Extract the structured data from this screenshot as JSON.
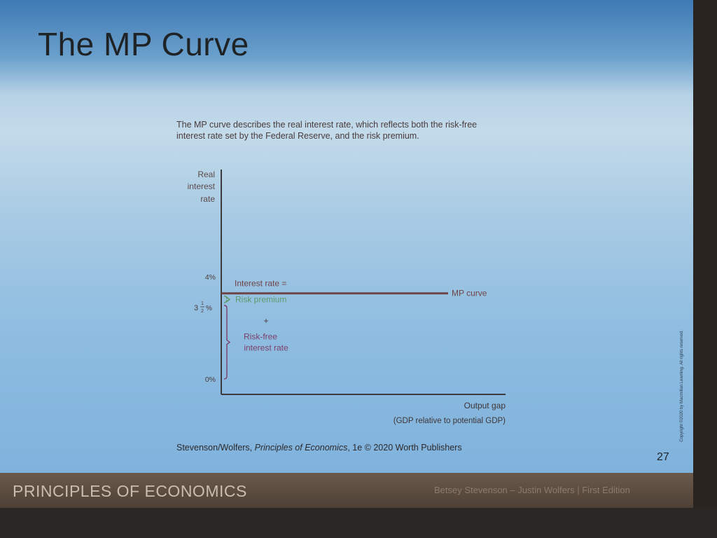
{
  "slide": {
    "title": "The MP Curve",
    "caption": "The MP curve describes the real interest rate, which reflects both the risk-free interest rate set by the Federal Reserve, and the risk premium.",
    "credit_prefix": "Stevenson/Wolfers, ",
    "credit_book": "Principles of Economics",
    "credit_suffix": ", 1e © 2020 Worth Publishers",
    "page_number": "27",
    "copyright": "Copyright ©2020 by Macmillan Learning. All rights reserved."
  },
  "footer": {
    "left": "PRINCIPLES OF ECONOMICS",
    "right": "Betsey Stevenson – Justin Wolfers | First Edition"
  },
  "colors": {
    "curve": "#6e4448",
    "risk_premium": "#5a9a6a",
    "risk_free": "#7c3f6a",
    "axis": "#3b3a3c"
  },
  "chart_data": {
    "type": "line",
    "title": "",
    "ylabel": [
      "Real",
      "interest",
      "rate"
    ],
    "xlabel": [
      "Output gap",
      "(GDP relative to potential GDP)"
    ],
    "ylim": [
      0,
      10.5
    ],
    "yticks": [
      {
        "value": 4,
        "label": "4%"
      },
      {
        "value": 3.5,
        "label": "3½%",
        "whole": "3",
        "num": "1",
        "den": "2",
        "suffix": "%"
      },
      {
        "value": 0,
        "label": "0%"
      }
    ],
    "series": [
      {
        "name": "MP curve",
        "y": 4,
        "label_line1": "Interest rate =",
        "label_end": "MP curve"
      }
    ],
    "annotations": {
      "risk_premium": {
        "label": "Risk premium",
        "from": 3.5,
        "to": 4
      },
      "risk_free": {
        "label": [
          "Risk-free",
          "interest rate"
        ],
        "from": 0,
        "to": 3.5
      },
      "plus": "+"
    }
  }
}
